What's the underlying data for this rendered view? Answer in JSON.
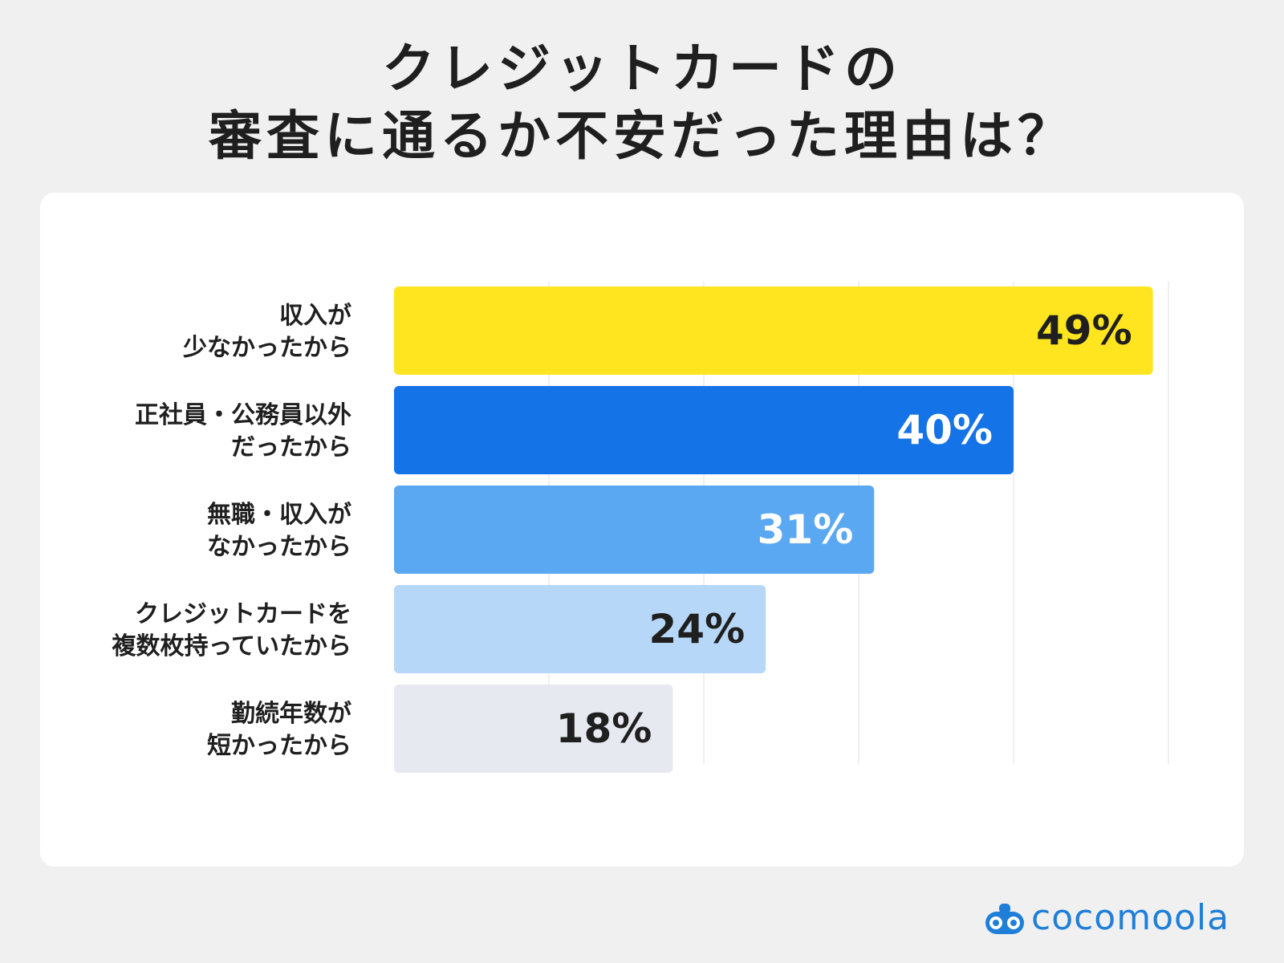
{
  "header": {
    "title_line1": "クレジットカードの",
    "title_line2": "審査に通るか不安だった理由は？"
  },
  "brand": {
    "name": "cocomoola",
    "icon": "cocomoola-logo-icon",
    "color": "#1f7fd8"
  },
  "chart_data": {
    "type": "bar",
    "orientation": "horizontal",
    "categories": [
      [
        "収入が",
        "少なかったから"
      ],
      [
        "正社員・公務員以外",
        "だったから"
      ],
      [
        "無職・収入が",
        "なかったから"
      ],
      [
        "クレジットカードを",
        "複数枚持っていたから"
      ],
      [
        "勤続年数が",
        "短かったから"
      ]
    ],
    "values": [
      49,
      40,
      31,
      24,
      18
    ],
    "value_labels": [
      "49%",
      "40%",
      "31%",
      "24%",
      "18%"
    ],
    "colors": [
      "#ffe51f",
      "#1473e6",
      "#5ba8f2",
      "#b7d7f8",
      "#e6e9ef"
    ],
    "label_colors": [
      "#1f1f1f",
      "#ffffff",
      "#ffffff",
      "#1f1f1f",
      "#1f1f1f"
    ],
    "xlim": [
      0,
      50
    ],
    "grid": true,
    "legend": "none"
  }
}
